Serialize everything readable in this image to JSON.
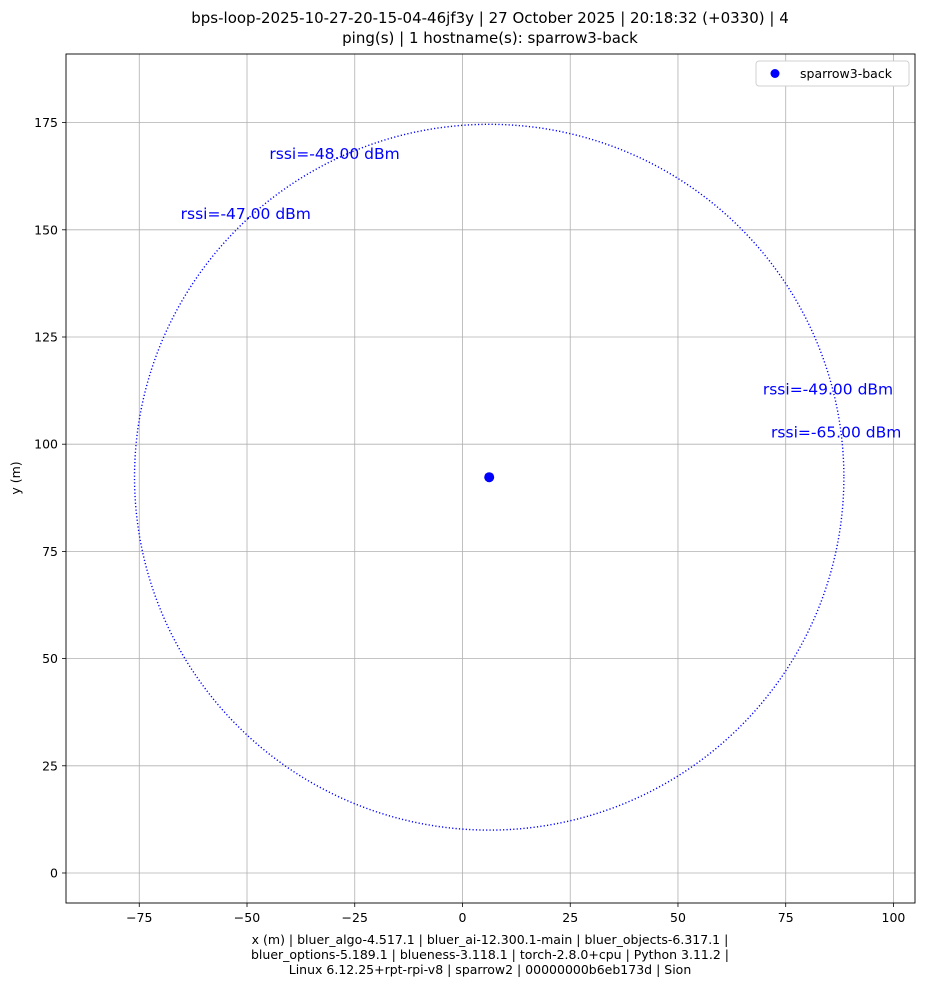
{
  "title_lines": [
    "bps-loop-2025-10-27-20-15-04-46jf3y | 27 October 2025 | 20:18:32 (+0330) | 4",
    "ping(s) | 1 hostname(s): sparrow3-back"
  ],
  "xlabel_lines": [
    "x (m) | bluer_algo-4.517.1 | bluer_ai-12.300.1-main | bluer_objects-6.317.1 |",
    "bluer_options-5.189.1 | blueness-3.118.1 | torch-2.8.0+cpu | Python 3.11.2 |",
    "Linux 6.12.25+rpt-rpi-v8 | sparrow2 | 00000000b6eb173d | Sion"
  ],
  "chart_data": {
    "type": "scatter",
    "ylabel": "y (m)",
    "xlim": [
      -92,
      105
    ],
    "ylim": [
      -7,
      191
    ],
    "xticks": [
      -75,
      -50,
      -25,
      0,
      25,
      50,
      75,
      100
    ],
    "xtick_labels": [
      "−75",
      "−50",
      "−25",
      "0",
      "25",
      "50",
      "75",
      "100"
    ],
    "yticks": [
      0,
      25,
      50,
      75,
      100,
      125,
      150,
      175
    ],
    "ytick_labels": [
      "0",
      "25",
      "50",
      "75",
      "100",
      "125",
      "150",
      "175"
    ],
    "grid": true,
    "legend_position": "top-right",
    "series": [
      {
        "name": "sparrow3-back",
        "color": "#0000ff",
        "marker": "circle",
        "points": [
          {
            "x": 6.2,
            "y": 92.3
          }
        ],
        "range_circle": {
          "center": {
            "x": 6.2,
            "y": 92.3
          },
          "radius": 82.3,
          "style": "dotted"
        }
      }
    ],
    "annotations": [
      {
        "text": "rssi=-48.00 dBm",
        "x": -44.8,
        "y": 166.5,
        "color": "#0000ff"
      },
      {
        "text": "rssi=-47.00 dBm",
        "x": -65.4,
        "y": 152.5,
        "color": "#0000ff"
      },
      {
        "text": "rssi=-49.00 dBm",
        "x": 69.7,
        "y": 111.6,
        "color": "#0000ff"
      },
      {
        "text": "rssi=-65.00 dBm",
        "x": 71.6,
        "y": 101.6,
        "color": "#0000ff"
      }
    ]
  }
}
